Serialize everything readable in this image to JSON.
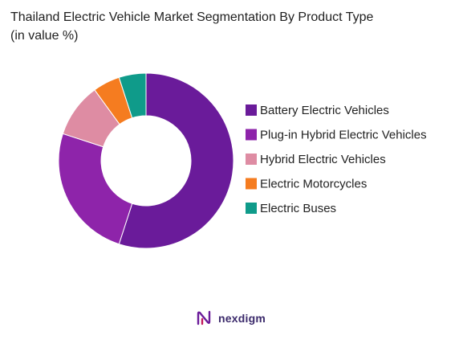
{
  "chart_data": {
    "type": "pie",
    "style": "donut",
    "title": "Thailand Electric Vehicle Market Segmentation By Product Type",
    "subtitle": "(in value %)",
    "categories": [
      "Battery Electric Vehicles",
      "Plug-in Hybrid Electric Vehicles",
      "Hybrid Electric Vehicles",
      "Electric Motorcycles",
      "Electric Buses"
    ],
    "values": [
      55,
      25,
      10,
      5,
      5
    ],
    "colors": [
      "#6a1b9a",
      "#8e24aa",
      "#de8ca3",
      "#f57c20",
      "#0f9b8a"
    ],
    "legend_placement": "right"
  },
  "brand": {
    "logo_text": "nexdigm",
    "logo_icon": "nexdigm-logo-icon"
  }
}
